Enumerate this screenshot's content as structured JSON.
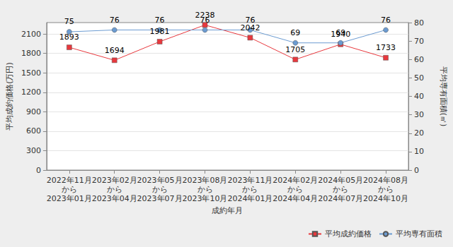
{
  "chart_data": {
    "type": "line",
    "categories": [
      "2022年11月\nから\n2023年01月",
      "2023年02月\nから\n2023年04月",
      "2023年05月\nから\n2023年07月",
      "2023年08月\nから\n2023年10月",
      "2023年11月\nから\n2024年01月",
      "2024年02月\nから\n2024年04月",
      "2024年05月\nから\n2024年07月",
      "2024年08月\nから\n2024年10月"
    ],
    "x_label": "成約年月",
    "y_label": "平均成約価格(万円)",
    "y2_label": "平均専有面積(㎡)",
    "series": [
      {
        "name": "平均成約価格",
        "color": "#e8383d",
        "marker": "square",
        "values": [
          1893,
          1694,
          1981,
          2238,
          2042,
          1705,
          1940,
          1733
        ]
      },
      {
        "name": "平均専有面積",
        "color": "#6b9bd1",
        "marker": "circle",
        "axis": "y2",
        "values": [
          75,
          76,
          76,
          76,
          76,
          69,
          69,
          76
        ]
      }
    ],
    "ylim": [
      0,
      2275
    ],
    "yticks": [
      0,
      300,
      600,
      900,
      1200,
      1500,
      1800,
      2100
    ],
    "y2lim": [
      0,
      80
    ],
    "y2ticks": [
      0,
      10,
      20,
      30,
      40,
      50,
      60,
      70,
      80
    ],
    "grid": true,
    "legend": "lower right",
    "data_labels": true
  }
}
